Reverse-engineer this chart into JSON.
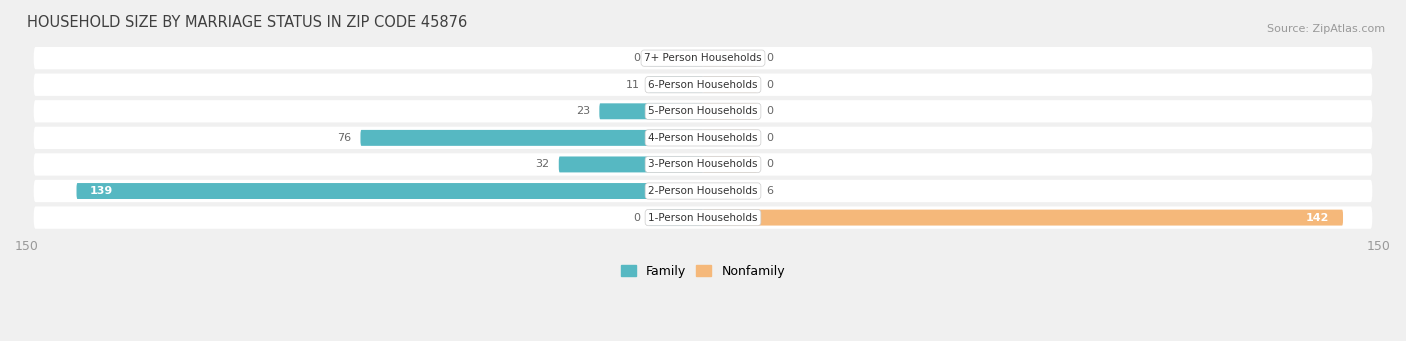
{
  "title": "HOUSEHOLD SIZE BY MARRIAGE STATUS IN ZIP CODE 45876",
  "source": "Source: ZipAtlas.com",
  "categories": [
    "1-Person Households",
    "2-Person Households",
    "3-Person Households",
    "4-Person Households",
    "5-Person Households",
    "6-Person Households",
    "7+ Person Households"
  ],
  "family_values": [
    0,
    139,
    32,
    76,
    23,
    11,
    0
  ],
  "nonfamily_values": [
    142,
    6,
    0,
    0,
    0,
    0,
    0
  ],
  "family_color": "#56b8c2",
  "nonfamily_color": "#f5b87a",
  "xlim": 150,
  "background_color": "#f0f0f0",
  "row_bg_color": "#ffffff",
  "label_color": "#666666",
  "title_color": "#404040",
  "axis_label_color": "#999999",
  "min_bar_width": 12
}
